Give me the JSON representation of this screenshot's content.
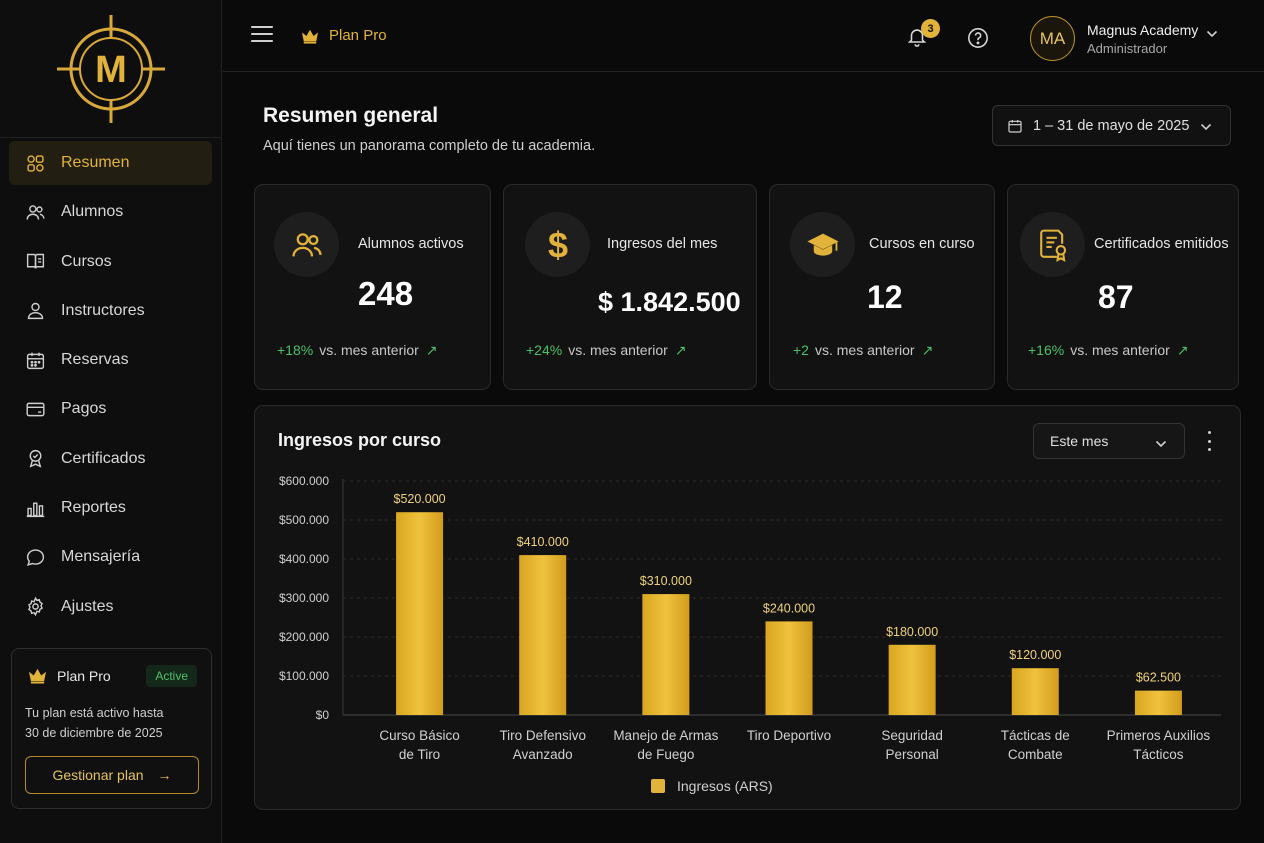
{
  "app": {
    "brand_letter": "M"
  },
  "sidebar": {
    "items": [
      {
        "label": "Resumen",
        "icon": "dashboard-icon",
        "active": true
      },
      {
        "label": "Alumnos",
        "icon": "users-icon"
      },
      {
        "label": "Cursos",
        "icon": "book-icon"
      },
      {
        "label": "Instructores",
        "icon": "user-icon"
      },
      {
        "label": "Reservas",
        "icon": "calendar-icon"
      },
      {
        "label": "Pagos",
        "icon": "card-icon"
      },
      {
        "label": "Certificados",
        "icon": "badge-icon"
      },
      {
        "label": "Reportes",
        "icon": "bar-chart-icon"
      },
      {
        "label": "Mensajería",
        "icon": "chat-icon"
      },
      {
        "label": "Ajustes",
        "icon": "gear-icon"
      }
    ],
    "plan_card": {
      "title": "Plan Pro",
      "status": "Active",
      "text_line1": "Tu plan está activo hasta",
      "text_line2": "30 de diciembre de 2025",
      "button": "Gestionar plan"
    }
  },
  "topbar": {
    "plan_label": "Plan Pro",
    "notifications": "3",
    "avatar_initials": "MA",
    "user_name": "Magnus Academy",
    "user_role": "Administrador"
  },
  "header": {
    "title": "Resumen general",
    "subtitle": "Aquí tienes un panorama completo de tu academia.",
    "date_range": "1 – 31 de mayo de 2025"
  },
  "kpis": [
    {
      "label": "Alumnos activos",
      "value": "248",
      "delta": "+18%",
      "delta_text": "vs. mes anterior"
    },
    {
      "label": "Ingresos del mes",
      "value": "$ 1.842.500",
      "delta": "+24%",
      "delta_text": "vs. mes anterior"
    },
    {
      "label": "Cursos en curso",
      "value": "12",
      "delta": "+2",
      "delta_text": "vs. mes anterior"
    },
    {
      "label": "Certificados emitidos",
      "value": "87",
      "delta": "+16%",
      "delta_text": "vs. mes anterior"
    }
  ],
  "chart": {
    "title": "Ingresos por curso",
    "period": "Este mes"
  },
  "colors": {
    "accent": "#e2b33a",
    "positive": "#4cc06a",
    "background": "#0a0a0a"
  },
  "chart_data": {
    "type": "bar",
    "categories": [
      [
        "Curso Básico",
        "de Tiro"
      ],
      [
        "Tiro Defensivo",
        "Avanzado"
      ],
      [
        "Manejo de Armas",
        "de Fuego"
      ],
      [
        "Tiro Deportivo"
      ],
      [
        "Seguridad",
        "Personal"
      ],
      [
        "Tácticas de",
        "Combate"
      ],
      [
        "Primeros Auxilios",
        "Tácticos"
      ]
    ],
    "series": [
      {
        "name": "Ingresos (ARS)",
        "values": [
          520000,
          410000,
          310000,
          240000,
          180000,
          120000,
          62500
        ]
      }
    ],
    "value_labels": [
      "$520.000",
      "$410.000",
      "$310.000",
      "$240.000",
      "$180.000",
      "$120.000",
      "$62.500"
    ],
    "yticks": [
      0,
      100000,
      200000,
      300000,
      400000,
      500000,
      600000
    ],
    "ytick_labels": [
      "$0",
      "$100.000",
      "$200.000",
      "$300.000",
      "$400.000",
      "$500.000",
      "$600.000"
    ],
    "ylim": [
      0,
      600000
    ],
    "grid": true,
    "legend": "bottom-center"
  }
}
